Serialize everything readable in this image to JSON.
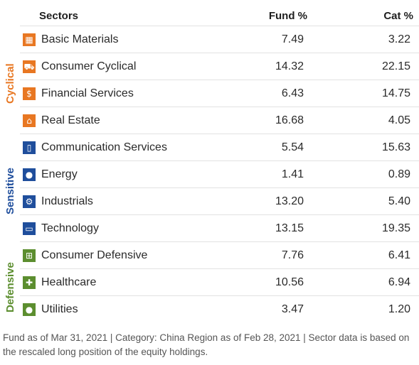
{
  "header": {
    "sectors": "Sectors",
    "fund": "Fund  %",
    "cat": "Cat  %"
  },
  "groups": {
    "cyclical": "Cyclical",
    "sensitive": "Sensitive",
    "defensive": "Defensive"
  },
  "colors": {
    "cyclical": "#e87722",
    "sensitive": "#1f4e9c",
    "defensive": "#5c8e2f"
  },
  "rows": [
    {
      "name": "Basic Materials",
      "fund": "7.49",
      "cat": "3.22",
      "icon": "bricks-icon",
      "group": "cyclical"
    },
    {
      "name": "Consumer Cyclical",
      "fund": "14.32",
      "cat": "22.15",
      "icon": "car-icon",
      "group": "cyclical"
    },
    {
      "name": "Financial Services",
      "fund": "6.43",
      "cat": "14.75",
      "icon": "money-icon",
      "group": "cyclical"
    },
    {
      "name": "Real Estate",
      "fund": "16.68",
      "cat": "4.05",
      "icon": "house-icon",
      "group": "cyclical"
    },
    {
      "name": "Communication Services",
      "fund": "5.54",
      "cat": "15.63",
      "icon": "phone-icon",
      "group": "sensitive"
    },
    {
      "name": "Energy",
      "fund": "1.41",
      "cat": "0.89",
      "icon": "flame-icon",
      "group": "sensitive"
    },
    {
      "name": "Industrials",
      "fund": "13.20",
      "cat": "5.40",
      "icon": "gear-icon",
      "group": "sensitive"
    },
    {
      "name": "Technology",
      "fund": "13.15",
      "cat": "19.35",
      "icon": "monitor-icon",
      "group": "sensitive"
    },
    {
      "name": "Consumer Defensive",
      "fund": "7.76",
      "cat": "6.41",
      "icon": "cart-icon",
      "group": "defensive"
    },
    {
      "name": "Healthcare",
      "fund": "10.56",
      "cat": "6.94",
      "icon": "cross-icon",
      "group": "defensive"
    },
    {
      "name": "Utilities",
      "fund": "3.47",
      "cat": "1.20",
      "icon": "lightbulb-icon",
      "group": "defensive"
    }
  ],
  "footnote": "Fund as of Mar 31, 2021 | Category: China Region as of Feb 28, 2021 | Sector data is based on the rescaled long position of the equity holdings."
}
